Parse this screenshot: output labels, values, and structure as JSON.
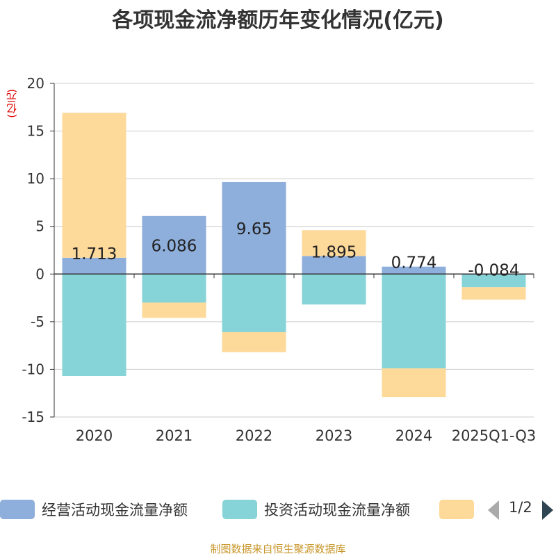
{
  "title": "各项现金流净额历年变化情况(亿元)",
  "source": "制图数据来自恒生聚源数据库",
  "legend": {
    "items": [
      {
        "label": "经营活动现金流量净额",
        "color": "#8eaedb"
      },
      {
        "label": "投资活动现金流量净额",
        "color": "#86d4d7"
      },
      {
        "label": "",
        "color": "#fdd99a"
      }
    ],
    "page": "1/2"
  },
  "chart_data": {
    "type": "bar",
    "stacked": true,
    "categories": [
      "2020",
      "2021",
      "2022",
      "2023",
      "2024",
      "2025Q1-Q3"
    ],
    "ylabel": "(亿元)",
    "ylim": [
      -15,
      20
    ],
    "yticks": [
      20,
      15,
      10,
      5,
      0,
      -5,
      -10,
      -15
    ],
    "series": [
      {
        "name": "经营活动现金流量净额",
        "color": "#8eaedb",
        "values": [
          1.713,
          6.086,
          9.65,
          1.895,
          0.774,
          -0.084
        ],
        "labels": [
          "1.713",
          "6.086",
          "9.65",
          "1.895",
          "0.774",
          "-0.084"
        ]
      },
      {
        "name": "投资活动现金流量净额",
        "color": "#86d4d7",
        "values": [
          -10.7,
          -3.0,
          -6.1,
          -3.2,
          -9.9,
          -1.3
        ]
      },
      {
        "name": "",
        "color": "#fdd99a",
        "values": [
          15.2,
          -1.6,
          -2.1,
          2.7,
          -3.0,
          -1.3
        ]
      }
    ]
  }
}
